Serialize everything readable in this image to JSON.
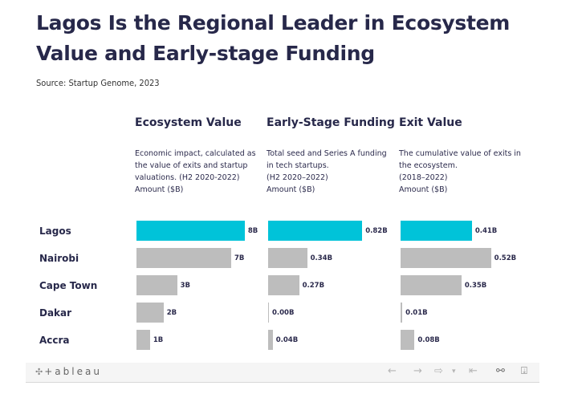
{
  "title": "Lagos Is the Regional Leader in Ecosystem Value and Early-stage Funding",
  "source": "Source: Startup Genome, 2023",
  "colors": {
    "highlight": "#00c3d9",
    "default": "#bdbdbd",
    "text": "#27284a"
  },
  "chart_data": [
    {
      "type": "bar",
      "orientation": "horizontal",
      "title": "Ecosystem Value",
      "description": [
        "Economic impact, calculated as",
        "the value of exits and startup",
        "valuations. (H2 2020-2022)",
        "Amount ($B)"
      ],
      "categories": [
        "Lagos",
        "Nairobi",
        "Cape Town",
        "Dakar",
        "Accra"
      ],
      "values": [
        8,
        7,
        3,
        2,
        1
      ],
      "labels": [
        "8B",
        "7B",
        "3B",
        "2B",
        "1B"
      ],
      "highlight": "Lagos",
      "xlim": [
        0,
        8.6
      ]
    },
    {
      "type": "bar",
      "orientation": "horizontal",
      "title": "Early-Stage Funding",
      "description": [
        "Total seed and Series A funding",
        "in tech startups.",
        "(H2 2020–2022)",
        "Amount ($B)"
      ],
      "categories": [
        "Lagos",
        "Nairobi",
        "Cape Town",
        "Dakar",
        "Accra"
      ],
      "values": [
        0.82,
        0.34,
        0.27,
        0.0,
        0.04
      ],
      "labels": [
        "0.82B",
        "0.34B",
        "0.27B",
        "0.00B",
        "0.04B"
      ],
      "highlight": "Lagos",
      "xlim": [
        0,
        1.0
      ]
    },
    {
      "type": "bar",
      "orientation": "horizontal",
      "title": "Exit Value",
      "description": [
        "The cumulative value of exits in",
        "the ecosystem.",
        "(2018–2022)",
        "Amount ($B)"
      ],
      "categories": [
        "Lagos",
        "Nairobi",
        "Cape Town",
        "Dakar",
        "Accra"
      ],
      "values": [
        0.41,
        0.52,
        0.35,
        0.01,
        0.08
      ],
      "labels": [
        "0.41B",
        "0.52B",
        "0.35B",
        "0.01B",
        "0.08B"
      ],
      "highlight": "Lagos",
      "xlim": [
        0,
        0.6
      ]
    }
  ],
  "toolbar": {
    "logo_text": "+ableau",
    "icons": [
      "undo-icon",
      "redo-icon",
      "revert-icon",
      "dropdown-icon",
      "reset-icon",
      "share-icon",
      "download-icon"
    ]
  }
}
